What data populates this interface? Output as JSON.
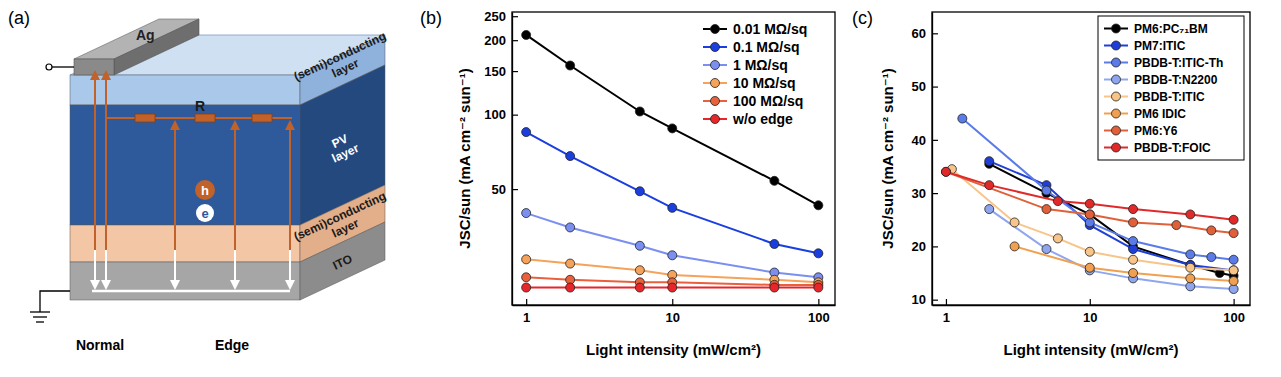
{
  "panel_labels": [
    "(a)",
    "(b)",
    "(c)"
  ],
  "diagram": {
    "electrode": "Ag",
    "top_layer": "(semi)conducting layer",
    "active_layer": "PV layer",
    "bottom_layer": "(semi)conducting layer",
    "substrate": "ITO",
    "resistor": "R",
    "hole": "h",
    "electron": "e",
    "paths": [
      "Normal",
      "Edge"
    ]
  },
  "chart_data": [
    {
      "type": "line",
      "x_label": "Light intensity (mW/cm²)",
      "y_label": "JSC/sun (mA cm⁻² sun⁻¹)",
      "log": true,
      "xlim": [
        0.8,
        130
      ],
      "ylim": [
        17,
        260
      ],
      "xticks": [
        1,
        10,
        100
      ],
      "yticks": [
        50,
        100,
        150,
        200,
        250
      ],
      "legend": "upper right",
      "marker": "circle",
      "x": [
        1,
        2,
        6,
        10,
        50,
        100
      ],
      "series": [
        {
          "name": "0.01 MΩ/sq",
          "color": "#000000",
          "values": [
            210,
            158,
            103,
            88,
            54,
            43
          ]
        },
        {
          "name": "0.1 MΩ/sq",
          "color": "#1a3ee0",
          "values": [
            85,
            68,
            49,
            42,
            30,
            27.5
          ]
        },
        {
          "name": "1 MΩ/sq",
          "color": "#7b8ff0",
          "values": [
            40,
            35,
            29.5,
            27,
            23,
            22
          ]
        },
        {
          "name": "10 MΩ/sq",
          "color": "#f5a25a",
          "values": [
            26,
            25,
            23.5,
            22.5,
            21.5,
            21
          ]
        },
        {
          "name": "100 MΩ/sq",
          "color": "#e8603c",
          "values": [
            22,
            21.5,
            21,
            21,
            20.5,
            20.5
          ]
        },
        {
          "name": "w/o edge",
          "color": "#e8262a",
          "values": [
            20,
            20,
            20,
            20,
            20,
            20
          ]
        }
      ]
    },
    {
      "type": "line",
      "x_label": "Light intensity (mW/cm²)",
      "y_label": "JSC/sun (mA cm⁻² sun⁻¹)",
      "log": "x",
      "xlim": [
        0.8,
        130
      ],
      "ylim": [
        9,
        64
      ],
      "xticks": [
        1,
        10,
        100
      ],
      "yticks": [
        10,
        20,
        30,
        40,
        50,
        60
      ],
      "legend": "upper right",
      "marker": "circle",
      "series": [
        {
          "name": "PM6:PC₇₁BM",
          "color": "#000000",
          "x": [
            2,
            5,
            10,
            20,
            50,
            80,
            100
          ],
          "values": [
            35.5,
            30,
            26,
            20,
            16.5,
            15,
            14.5
          ]
        },
        {
          "name": "PM7:ITIC",
          "color": "#1f3fd6",
          "x": [
            2,
            5,
            10,
            20,
            50,
            100
          ],
          "values": [
            36,
            31.5,
            24,
            19.5,
            16.5,
            15.5
          ]
        },
        {
          "name": "PBDB-T:ITIC-Th",
          "color": "#5b7be8",
          "x": [
            1.3,
            5,
            10,
            20,
            50,
            70,
            100
          ],
          "values": [
            44,
            30.5,
            24.5,
            21,
            18.5,
            18,
            17.5
          ]
        },
        {
          "name": "PBDB-T:N2200",
          "color": "#8fa6ef",
          "x": [
            2,
            5,
            10,
            20,
            50,
            100
          ],
          "values": [
            27,
            19.5,
            15.5,
            14,
            12.5,
            12
          ]
        },
        {
          "name": "PBDB-T:ITIC",
          "color": "#f7c58a",
          "x": [
            1.1,
            3,
            6,
            10,
            20,
            50,
            100
          ],
          "values": [
            34.5,
            24.5,
            21.5,
            19,
            17.5,
            16,
            15.5
          ]
        },
        {
          "name": "PM6 IDIC",
          "color": "#f0a050",
          "x": [
            3,
            10,
            20,
            50,
            100
          ],
          "values": [
            20,
            16,
            15,
            14,
            13.5
          ]
        },
        {
          "name": "PM6:Y6",
          "color": "#e0603a",
          "x": [
            1,
            5,
            10,
            20,
            40,
            70,
            100
          ],
          "values": [
            34,
            27,
            26,
            24.5,
            24,
            23,
            22.5
          ]
        },
        {
          "name": "PBDB-T:FOIC",
          "color": "#e02a2a",
          "x": [
            1,
            2,
            6,
            10,
            20,
            50,
            100
          ],
          "values": [
            34,
            31.5,
            28.5,
            28,
            27,
            26,
            25
          ]
        }
      ]
    }
  ]
}
